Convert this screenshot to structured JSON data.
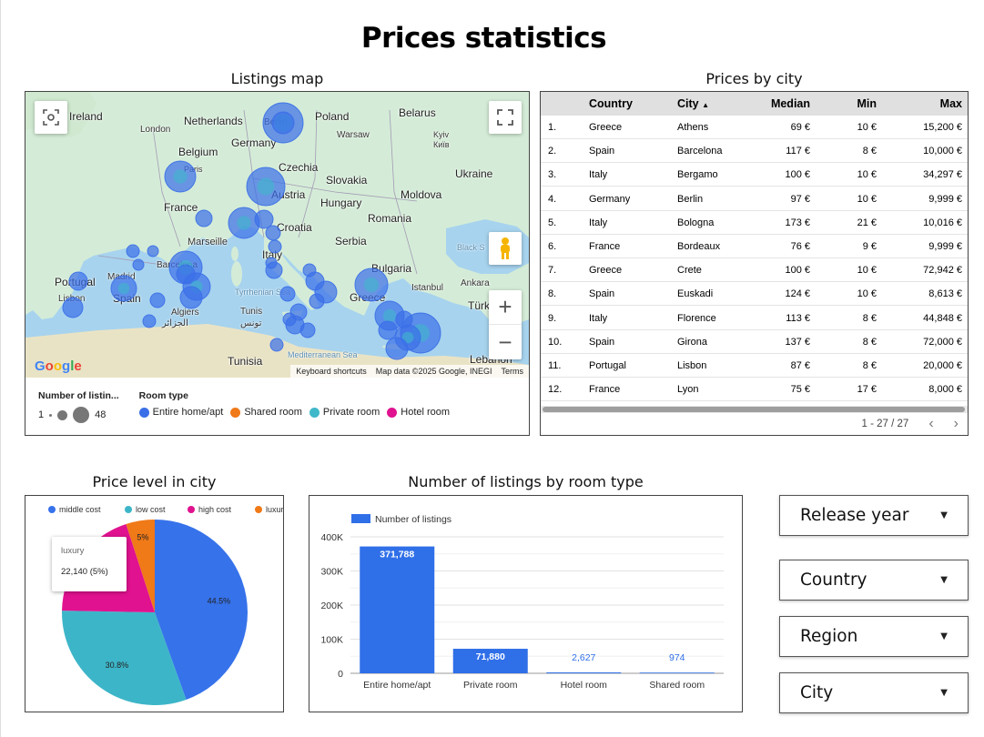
{
  "page": {
    "title": "Prices statistics"
  },
  "map": {
    "title": "Listings map",
    "labels": [
      {
        "text": "Ireland",
        "kind": "country"
      },
      {
        "text": "London",
        "kind": "city"
      },
      {
        "text": "Netherlands",
        "kind": "country"
      },
      {
        "text": "Berlin",
        "kind": "city"
      },
      {
        "text": "Poland",
        "kind": "country"
      },
      {
        "text": "Belarus",
        "kind": "country"
      },
      {
        "text": "Warsaw",
        "kind": "city"
      },
      {
        "text": "Germany",
        "kind": "country"
      },
      {
        "text": "Belgium",
        "kind": "country"
      },
      {
        "text": "Kyiv",
        "kind": "city"
      },
      {
        "text": "Київ",
        "kind": "city"
      },
      {
        "text": "Paris",
        "kind": "city"
      },
      {
        "text": "Czechia",
        "kind": "country"
      },
      {
        "text": "Slovakia",
        "kind": "country"
      },
      {
        "text": "Ukraine",
        "kind": "country"
      },
      {
        "text": "Austria",
        "kind": "country"
      },
      {
        "text": "Hungary",
        "kind": "country"
      },
      {
        "text": "Moldova",
        "kind": "country"
      },
      {
        "text": "France",
        "kind": "country"
      },
      {
        "text": "Croatia",
        "kind": "country"
      },
      {
        "text": "Romania",
        "kind": "country"
      },
      {
        "text": "Marseille",
        "kind": "city"
      },
      {
        "text": "Serbia",
        "kind": "country"
      },
      {
        "text": "Black S",
        "kind": "sea"
      },
      {
        "text": "Italy",
        "kind": "country"
      },
      {
        "text": "Portugal",
        "kind": "country"
      },
      {
        "text": "Madrid",
        "kind": "city"
      },
      {
        "text": "Barcelona",
        "kind": "city"
      },
      {
        "text": "Bulgaria",
        "kind": "country"
      },
      {
        "text": "Spain",
        "kind": "country"
      },
      {
        "text": "Lisbon",
        "kind": "city"
      },
      {
        "text": "Tyrrhenian Sea",
        "kind": "sea"
      },
      {
        "text": "Istanbul",
        "kind": "city"
      },
      {
        "text": "Ankara",
        "kind": "city"
      },
      {
        "text": "Greece",
        "kind": "country"
      },
      {
        "text": "Türkiye",
        "kind": "country"
      },
      {
        "text": "Algiers",
        "kind": "city"
      },
      {
        "text": "الجزائر",
        "kind": "city"
      },
      {
        "text": "Tunis",
        "kind": "city"
      },
      {
        "text": "تونس",
        "kind": "city"
      },
      {
        "text": "Mediterranean Sea",
        "kind": "sea"
      },
      {
        "text": "Tunisia",
        "kind": "country"
      },
      {
        "text": "Lebanon",
        "kind": "country"
      }
    ],
    "footer": {
      "shortcuts": "Keyboard shortcuts",
      "mapdata": "Map data ©2025 Google, INEGI",
      "terms": "Terms"
    },
    "logo": "Google",
    "controls": {
      "zoom_in": "+",
      "zoom_out": "−"
    },
    "legend": {
      "size_title": "Number of listin...",
      "size_min": "1",
      "size_max": "48",
      "room_title": "Room type",
      "room_types": [
        {
          "label": "Entire home/apt",
          "color": "#3b6fe8"
        },
        {
          "label": "Shared room",
          "color": "#f07918"
        },
        {
          "label": "Private room",
          "color": "#3fb8c9"
        },
        {
          "label": "Hotel room",
          "color": "#e0128f"
        }
      ]
    }
  },
  "table": {
    "title": "Prices by city",
    "headers": {
      "country": "Country",
      "city": "City",
      "median": "Median",
      "min": "Min",
      "max": "Max"
    },
    "sort_indicator": "▲",
    "rows": [
      {
        "idx": "1.",
        "country": "Greece",
        "city": "Athens",
        "median": "69 €",
        "min": "10 €",
        "max": "15,200 €"
      },
      {
        "idx": "2.",
        "country": "Spain",
        "city": "Barcelona",
        "median": "117 €",
        "min": "8 €",
        "max": "10,000 €"
      },
      {
        "idx": "3.",
        "country": "Italy",
        "city": "Bergamo",
        "median": "100 €",
        "min": "10 €",
        "max": "34,297 €"
      },
      {
        "idx": "4.",
        "country": "Germany",
        "city": "Berlin",
        "median": "97 €",
        "min": "10 €",
        "max": "9,999 €"
      },
      {
        "idx": "5.",
        "country": "Italy",
        "city": "Bologna",
        "median": "173 €",
        "min": "21 €",
        "max": "10,016 €"
      },
      {
        "idx": "6.",
        "country": "France",
        "city": "Bordeaux",
        "median": "76 €",
        "min": "9 €",
        "max": "9,999 €"
      },
      {
        "idx": "7.",
        "country": "Greece",
        "city": "Crete",
        "median": "100 €",
        "min": "10 €",
        "max": "72,942 €"
      },
      {
        "idx": "8.",
        "country": "Spain",
        "city": "Euskadi",
        "median": "124 €",
        "min": "10 €",
        "max": "8,613 €"
      },
      {
        "idx": "9.",
        "country": "Italy",
        "city": "Florence",
        "median": "113 €",
        "min": "8 €",
        "max": "44,848 €"
      },
      {
        "idx": "10.",
        "country": "Spain",
        "city": "Girona",
        "median": "137 €",
        "min": "8 €",
        "max": "72,000 €"
      },
      {
        "idx": "11.",
        "country": "Portugal",
        "city": "Lisbon",
        "median": "87 €",
        "min": "8 €",
        "max": "20,000 €"
      },
      {
        "idx": "12.",
        "country": "France",
        "city": "Lyon",
        "median": "75 €",
        "min": "17 €",
        "max": "8,000 €"
      }
    ],
    "pagination": {
      "range": "1 - 27 / 27",
      "prev": "‹",
      "next": "›"
    }
  },
  "pie": {
    "title": "Price level in city",
    "tooltip": {
      "title": "luxury",
      "value": "22,140 (5%)"
    }
  },
  "bar": {
    "title": "Number of listings by room type"
  },
  "chart_data": [
    {
      "type": "pie",
      "title": "Price level in city",
      "legend": "top",
      "slices": [
        {
          "name": "middle cost",
          "value": 44.5,
          "label": "44.5%",
          "color": "#3672ea"
        },
        {
          "name": "low cost",
          "value": 30.8,
          "label": "30.8%",
          "color": "#3db5c8"
        },
        {
          "name": "high cost",
          "value": 19.7,
          "label": "",
          "color": "#e0128f"
        },
        {
          "name": "luxury",
          "value": 5.0,
          "label": "5%",
          "color": "#f07918"
        }
      ]
    },
    {
      "type": "bar",
      "title": "Number of listings by room type",
      "legend": "top-left",
      "categories": [
        "Entire home/apt",
        "Private room",
        "Hotel room",
        "Shared room"
      ],
      "series": [
        {
          "name": "Number of listings",
          "values": [
            371788,
            71880,
            2627,
            974
          ],
          "color": "#2f6fe8"
        }
      ],
      "value_labels": [
        "371,788",
        "71,880",
        "2,627",
        "974"
      ],
      "yticks": [
        "0",
        "100K",
        "200K",
        "300K",
        "400K"
      ],
      "ylim": [
        0,
        400000
      ],
      "grid": true
    }
  ],
  "filters": [
    {
      "label": "Release year"
    },
    {
      "label": "Country"
    },
    {
      "label": "Region"
    },
    {
      "label": "City"
    }
  ],
  "colors": {
    "land": "#d2ecd9",
    "sea": "#a7d3ee",
    "bubble": "#3b6fe8"
  }
}
